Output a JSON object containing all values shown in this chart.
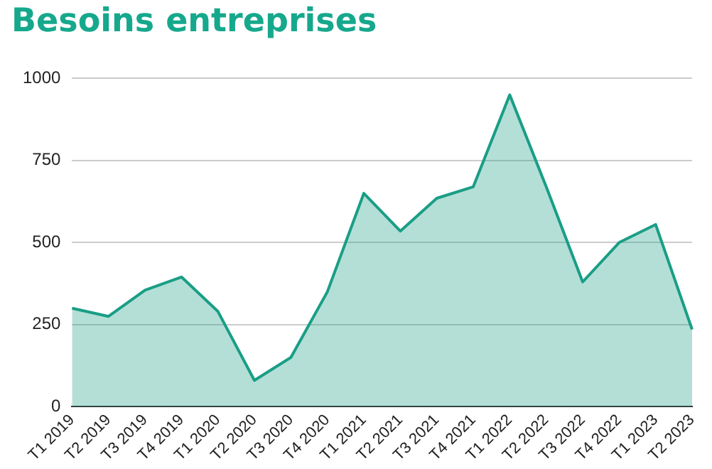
{
  "chart_data": {
    "type": "area",
    "title": "Besoins entreprises",
    "categories": [
      "T1 2019",
      "T2 2019",
      "T3 2019",
      "T4 2019",
      "T1 2020",
      "T2 2020",
      "T3 2020",
      "T4 2020",
      "T1 2021",
      "T2 2021",
      "T3 2021",
      "T4 2021",
      "T1 2022",
      "T2 2022",
      "T3 2022",
      "T4 2022",
      "T1 2023",
      "T2 2023"
    ],
    "series": [
      {
        "color": "#1a9e86",
        "values": [
          300,
          275,
          355,
          395,
          290,
          80,
          150,
          350,
          650,
          535,
          635,
          670,
          950,
          670,
          380,
          500,
          555,
          235
        ]
      }
    ],
    "ylim": [
      0,
      1000
    ],
    "yticks": [
      0,
      250,
      500,
      750,
      1000
    ],
    "grid": "y",
    "legend": false,
    "marker": "none",
    "line_style": "solid"
  }
}
